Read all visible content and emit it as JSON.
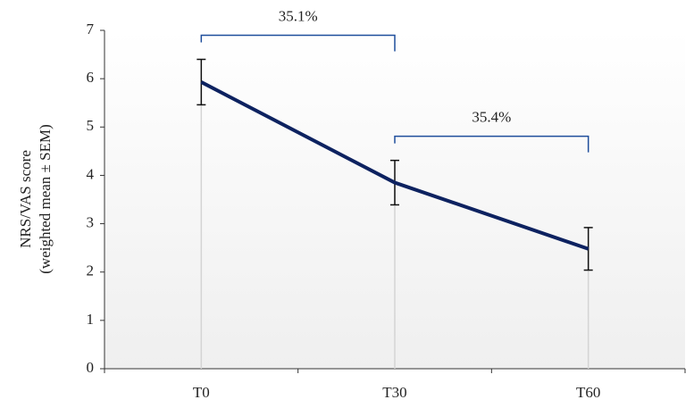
{
  "chart_data": {
    "type": "line",
    "y_label": [
      "NRS/VAS score",
      "(weighted mean ± SEM)"
    ],
    "categories": [
      "T0",
      "T30",
      "T60"
    ],
    "values": [
      5.93,
      3.85,
      2.48
    ],
    "errors": [
      0.47,
      0.46,
      0.44
    ],
    "color": "#0d2260",
    "annotations": [
      "35.1%",
      "35.4%"
    ],
    "annotation_color": "#1f4e9c",
    "ylim": [
      0,
      7
    ],
    "yticks": [
      0,
      1,
      2,
      3,
      4,
      5,
      6,
      7
    ]
  }
}
